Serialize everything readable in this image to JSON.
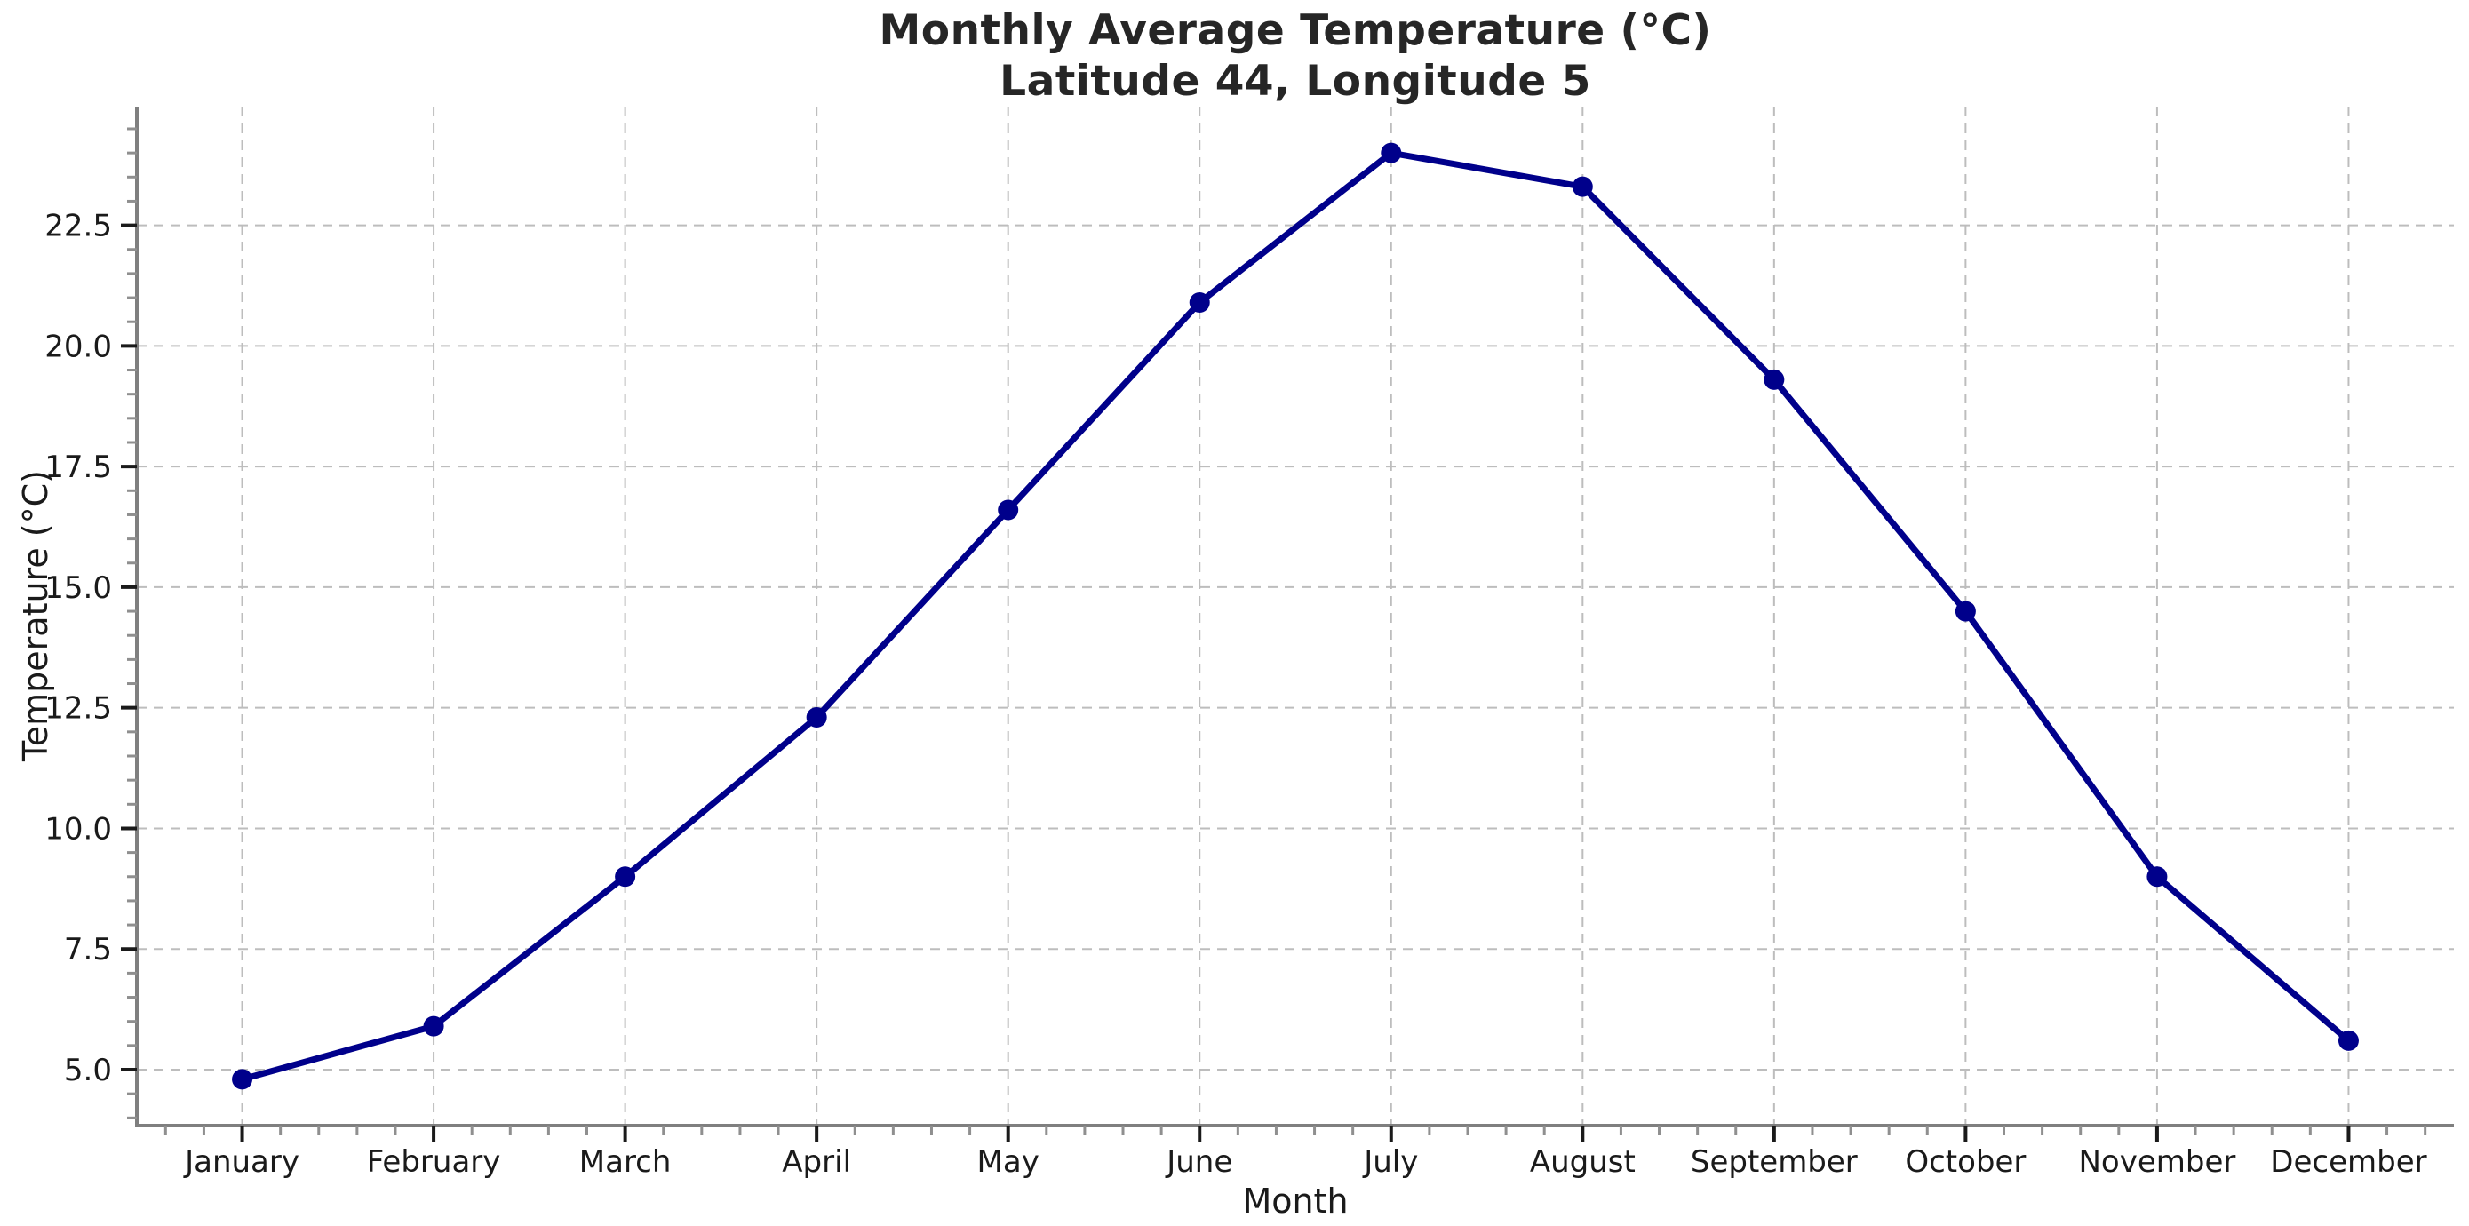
{
  "chart_data": {
    "type": "line",
    "title": "Monthly Average Temperature (°C)",
    "subtitle": "Latitude 44, Longitude 5",
    "xlabel": "Month",
    "ylabel": "Temperature (°C)",
    "categories": [
      "January",
      "February",
      "March",
      "April",
      "May",
      "June",
      "July",
      "August",
      "September",
      "October",
      "November",
      "December"
    ],
    "series": [
      {
        "name": "Monthly average temperature",
        "values": [
          4.8,
          5.9,
          9.0,
          12.3,
          16.6,
          20.9,
          24.0,
          23.3,
          19.3,
          14.5,
          9.0,
          5.6
        ]
      }
    ],
    "yticks": [
      5.0,
      7.5,
      10.0,
      12.5,
      15.0,
      17.5,
      20.0,
      22.5
    ],
    "ylim": [
      3.84,
      24.96
    ],
    "xlim_index": [
      -0.55,
      11.55
    ],
    "grid": "dashed-major-both",
    "legend": "none",
    "style": {
      "line_color": "#00008B",
      "marker": "circle",
      "marker_color": "#00008B",
      "grid_color": "#bdbdbd",
      "spine_color": "#7f7f7f",
      "major_tick_color": "#1a1a1a",
      "minor_tick_color": "#8f8f8f",
      "tick_label_color": "#1a1a1a",
      "title_color": "#262626",
      "background": "#ffffff"
    }
  }
}
